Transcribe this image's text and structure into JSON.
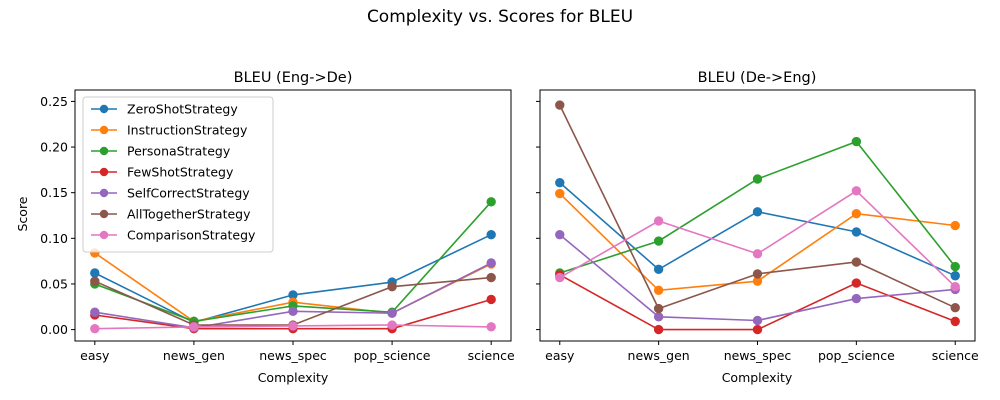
{
  "suptitle": "Complexity vs. Scores for BLEU",
  "chart_data": [
    {
      "type": "line",
      "title": "BLEU (Eng->De)",
      "xlabel": "Complexity",
      "ylabel": "Score",
      "categories": [
        "easy",
        "news_gen",
        "news_spec",
        "pop_science",
        "science"
      ],
      "ylim": [
        -0.0125,
        0.2625
      ],
      "yticks": [
        0.0,
        0.05,
        0.1,
        0.15,
        0.2,
        0.25
      ],
      "ytick_labels": [
        "0.00",
        "0.05",
        "0.10",
        "0.15",
        "0.20",
        "0.25"
      ],
      "legend": "upper-left",
      "grid": false,
      "series": [
        {
          "name": "ZeroShotStrategy",
          "color": "#1f77b4",
          "values": [
            0.062,
            0.008,
            0.038,
            0.052,
            0.104
          ]
        },
        {
          "name": "InstructionStrategy",
          "color": "#ff7f0e",
          "values": [
            0.084,
            0.009,
            0.03,
            0.018,
            0.072
          ]
        },
        {
          "name": "PersonaStrategy",
          "color": "#2ca02c",
          "values": [
            0.05,
            0.009,
            0.026,
            0.019,
            0.14
          ]
        },
        {
          "name": "FewShotStrategy",
          "color": "#d62728",
          "values": [
            0.016,
            0.001,
            0.001,
            0.001,
            0.033
          ]
        },
        {
          "name": "SelfCorrectStrategy",
          "color": "#9467bd",
          "values": [
            0.019,
            0.002,
            0.02,
            0.018,
            0.073
          ]
        },
        {
          "name": "AllTogetherStrategy",
          "color": "#8c564b",
          "values": [
            0.053,
            0.005,
            0.005,
            0.047,
            0.057
          ]
        },
        {
          "name": "ComparisonStrategy",
          "color": "#e377c2",
          "values": [
            0.001,
            0.003,
            0.004,
            0.005,
            0.003
          ]
        }
      ]
    },
    {
      "type": "line",
      "title": "BLEU (De->Eng)",
      "xlabel": "Complexity",
      "ylabel": "",
      "categories": [
        "easy",
        "news_gen",
        "news_spec",
        "pop_science",
        "science"
      ],
      "ylim": [
        -0.0125,
        0.2625
      ],
      "legend": "none",
      "grid": false,
      "series": [
        {
          "name": "ZeroShotStrategy",
          "color": "#1f77b4",
          "values": [
            0.161,
            0.066,
            0.129,
            0.107,
            0.059
          ]
        },
        {
          "name": "InstructionStrategy",
          "color": "#ff7f0e",
          "values": [
            0.149,
            0.043,
            0.053,
            0.127,
            0.114
          ]
        },
        {
          "name": "PersonaStrategy",
          "color": "#2ca02c",
          "values": [
            0.062,
            0.097,
            0.165,
            0.206,
            0.069
          ]
        },
        {
          "name": "FewShotStrategy",
          "color": "#d62728",
          "values": [
            0.06,
            0.0,
            0.0,
            0.051,
            0.009
          ]
        },
        {
          "name": "SelfCorrectStrategy",
          "color": "#9467bd",
          "values": [
            0.104,
            0.014,
            0.01,
            0.034,
            0.044
          ]
        },
        {
          "name": "AllTogetherStrategy",
          "color": "#8c564b",
          "values": [
            0.246,
            0.023,
            0.061,
            0.074,
            0.024
          ]
        },
        {
          "name": "ComparisonStrategy",
          "color": "#e377c2",
          "values": [
            0.057,
            0.119,
            0.083,
            0.152,
            0.047
          ]
        }
      ]
    }
  ]
}
